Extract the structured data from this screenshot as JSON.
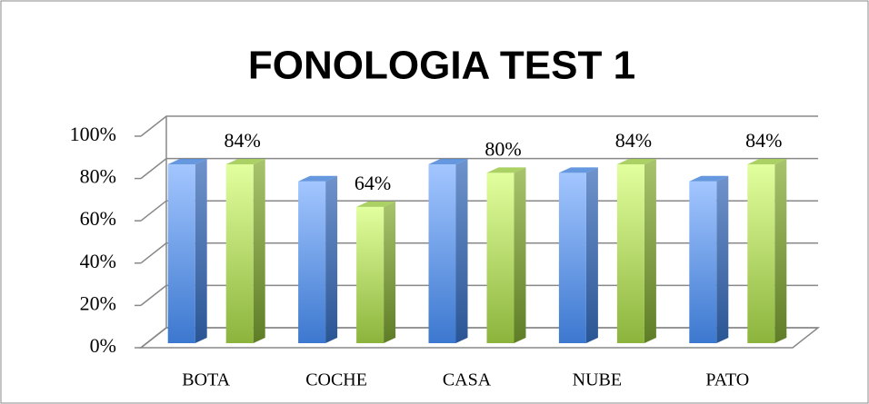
{
  "chart_data": {
    "type": "bar3d",
    "title": "FONOLOGIA TEST 1",
    "categories": [
      "BOTA",
      "COCHE",
      "CASA",
      "NUBE",
      "PATO"
    ],
    "series": [
      {
        "color": "#4a86d8",
        "values": [
          84,
          76,
          84,
          80,
          76
        ]
      },
      {
        "color": "#9cc94a",
        "values": [
          84,
          64,
          80,
          84,
          84
        ],
        "value_labels": [
          "84%",
          "64%",
          "80%",
          "84%",
          "84%"
        ]
      }
    ],
    "ylim": [
      0,
      100
    ],
    "yticks": [
      {
        "value": 0,
        "label": "0%"
      },
      {
        "value": 20,
        "label": "20%"
      },
      {
        "value": 40,
        "label": "40%"
      },
      {
        "value": 60,
        "label": "60%"
      },
      {
        "value": 80,
        "label": "80%"
      },
      {
        "value": 100,
        "label": "100%"
      }
    ],
    "grid": true
  }
}
